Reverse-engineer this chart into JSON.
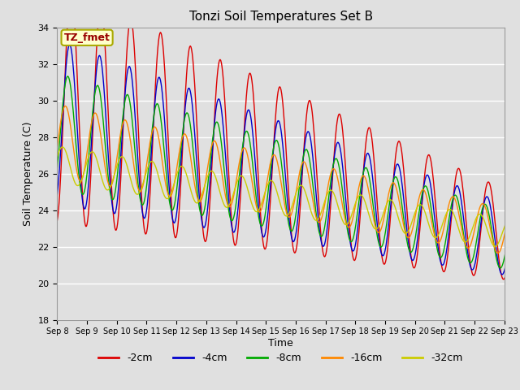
{
  "title": "Tonzi Soil Temperatures Set B",
  "xlabel": "Time",
  "ylabel": "Soil Temperature (C)",
  "ylim": [
    18,
    34
  ],
  "background_color": "#e0e0e0",
  "grid_color": "white",
  "annotation_text": "TZ_fmet",
  "annotation_bg": "#ffffcc",
  "annotation_border": "#aaaa00",
  "series_colors": [
    "#dd0000",
    "#0000cc",
    "#00aa00",
    "#ff8800",
    "#cccc00"
  ],
  "series_labels": [
    "-2cm",
    "-4cm",
    "-8cm",
    "-16cm",
    "-32cm"
  ],
  "xtick_labels": [
    "Sep 8",
    "Sep 9",
    "Sep 10",
    "Sep 11",
    "Sep 12",
    "Sep 13",
    "Sep 14",
    "Sep 15",
    "Sep 16",
    "Sep 17",
    "Sep 18",
    "Sep 19",
    "Sep 20",
    "Sep 21",
    "Sep 22",
    "Sep 23"
  ]
}
